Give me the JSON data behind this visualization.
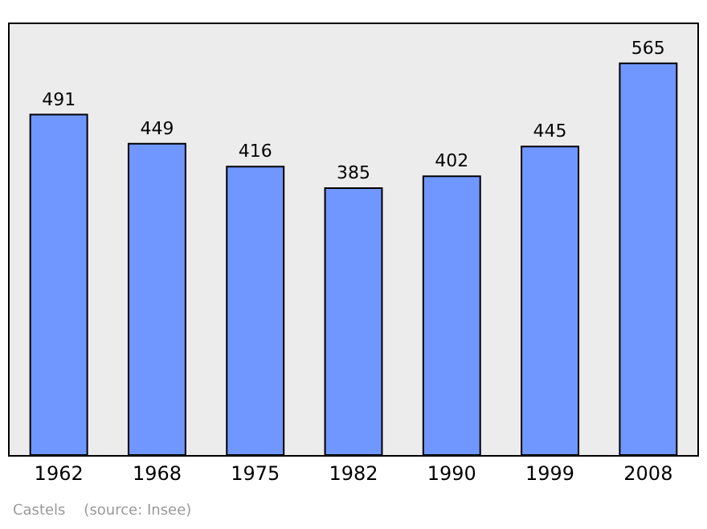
{
  "chart_data": {
    "type": "bar",
    "categories": [
      "1962",
      "1968",
      "1975",
      "1982",
      "1990",
      "1999",
      "2008"
    ],
    "values": [
      491,
      449,
      416,
      385,
      402,
      445,
      565
    ],
    "color": "#7097ff",
    "data_labels": true,
    "grid": false,
    "legend": false,
    "annotations": [
      "Castels    (source: Insee)"
    ]
  }
}
